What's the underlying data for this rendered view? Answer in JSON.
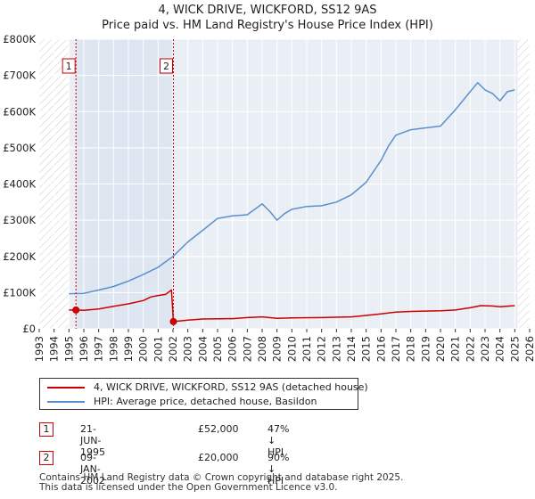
{
  "chart_data": {
    "type": "line",
    "title": "4, WICK DRIVE, WICKFORD, SS12 9AS",
    "subtitle": "Price paid vs. HM Land Registry's House Price Index (HPI)",
    "xlim": [
      1993,
      2026
    ],
    "ylim": [
      0,
      800000
    ],
    "x_ticks": [
      "1993",
      "1994",
      "1995",
      "1996",
      "1997",
      "1998",
      "1999",
      "2000",
      "2001",
      "2002",
      "2003",
      "2004",
      "2005",
      "2006",
      "2007",
      "2008",
      "2009",
      "2010",
      "2011",
      "2012",
      "2013",
      "2014",
      "2015",
      "2016",
      "2017",
      "2018",
      "2019",
      "2020",
      "2021",
      "2022",
      "2023",
      "2024",
      "2025",
      "2026"
    ],
    "y_ticks": [
      {
        "value": 0,
        "label": "£0"
      },
      {
        "value": 100000,
        "label": "£100K"
      },
      {
        "value": 200000,
        "label": "£200K"
      },
      {
        "value": 300000,
        "label": "£300K"
      },
      {
        "value": 400000,
        "label": "£400K"
      },
      {
        "value": 500000,
        "label": "£500K"
      },
      {
        "value": 600000,
        "label": "£600K"
      },
      {
        "value": 700000,
        "label": "£700K"
      },
      {
        "value": 800000,
        "label": "£800K"
      }
    ],
    "data_start": 1995.0,
    "data_end": 2025.2,
    "series": [
      {
        "name": "4, WICK DRIVE, WICKFORD, SS12 9AS (detached house)",
        "color": "#cc0000",
        "points": [
          [
            1995.0,
            52000
          ],
          [
            1995.47,
            52000
          ],
          [
            1996.0,
            51000
          ],
          [
            1997.0,
            55000
          ],
          [
            1998.0,
            62000
          ],
          [
            1999.0,
            69000
          ],
          [
            2000.0,
            78000
          ],
          [
            2000.5,
            88000
          ],
          [
            2001.0,
            92000
          ],
          [
            2001.5,
            95000
          ],
          [
            2001.9,
            107000
          ],
          [
            2002.03,
            20000
          ],
          [
            2003.0,
            24000
          ],
          [
            2004.0,
            27000
          ],
          [
            2006.0,
            28000
          ],
          [
            2007.0,
            31000
          ],
          [
            2008.0,
            33000
          ],
          [
            2009.0,
            29000
          ],
          [
            2010.0,
            30000
          ],
          [
            2012.0,
            31000
          ],
          [
            2014.0,
            33000
          ],
          [
            2015.0,
            37000
          ],
          [
            2016.0,
            41000
          ],
          [
            2017.0,
            46000
          ],
          [
            2018.0,
            48000
          ],
          [
            2019.0,
            49000
          ],
          [
            2020.0,
            50000
          ],
          [
            2021.0,
            52000
          ],
          [
            2022.0,
            58000
          ],
          [
            2022.7,
            64000
          ],
          [
            2023.5,
            63000
          ],
          [
            2024.0,
            61000
          ],
          [
            2025.0,
            64000
          ]
        ]
      },
      {
        "name": "HPI: Average price, detached house, Basildon",
        "color": "#5b8fcc",
        "points": [
          [
            1995.0,
            97000
          ],
          [
            1996.0,
            98000
          ],
          [
            1997.0,
            107000
          ],
          [
            1998.0,
            117000
          ],
          [
            1999.0,
            132000
          ],
          [
            2000.0,
            150000
          ],
          [
            2001.0,
            170000
          ],
          [
            2002.0,
            200000
          ],
          [
            2003.0,
            240000
          ],
          [
            2004.0,
            272000
          ],
          [
            2005.0,
            305000
          ],
          [
            2006.0,
            312000
          ],
          [
            2007.0,
            315000
          ],
          [
            2007.5,
            330000
          ],
          [
            2008.0,
            345000
          ],
          [
            2008.5,
            325000
          ],
          [
            2009.0,
            300000
          ],
          [
            2009.5,
            318000
          ],
          [
            2010.0,
            330000
          ],
          [
            2011.0,
            338000
          ],
          [
            2012.0,
            340000
          ],
          [
            2013.0,
            350000
          ],
          [
            2014.0,
            370000
          ],
          [
            2015.0,
            405000
          ],
          [
            2016.0,
            465000
          ],
          [
            2016.5,
            505000
          ],
          [
            2017.0,
            535000
          ],
          [
            2018.0,
            550000
          ],
          [
            2019.0,
            555000
          ],
          [
            2020.0,
            560000
          ],
          [
            2021.0,
            605000
          ],
          [
            2022.0,
            655000
          ],
          [
            2022.5,
            680000
          ],
          [
            2023.0,
            660000
          ],
          [
            2023.5,
            650000
          ],
          [
            2024.0,
            630000
          ],
          [
            2024.5,
            655000
          ],
          [
            2025.0,
            660000
          ]
        ]
      }
    ],
    "markers": [
      {
        "label": "1",
        "x": 1995.47,
        "y": 52000
      },
      {
        "label": "2",
        "x": 2002.03,
        "y": 20000
      }
    ]
  },
  "legend": {
    "entries": [
      {
        "label": "4, WICK DRIVE, WICKFORD, SS12 9AS (detached house)",
        "color": "#cc0000"
      },
      {
        "label": "HPI: Average price, detached house, Basildon",
        "color": "#5b8fcc"
      }
    ]
  },
  "transactions": [
    {
      "num": "1",
      "date": "21-JUN-1995",
      "price": "£52,000",
      "hpi": "47% ↓ HPI"
    },
    {
      "num": "2",
      "date": "09-JAN-2002",
      "price": "£20,000",
      "hpi": "90% ↓ HPI"
    }
  ],
  "footer": {
    "line1": "Contains HM Land Registry data © Crown copyright and database right 2025.",
    "line2": "This data is licensed under the Open Government Licence v3.0."
  }
}
